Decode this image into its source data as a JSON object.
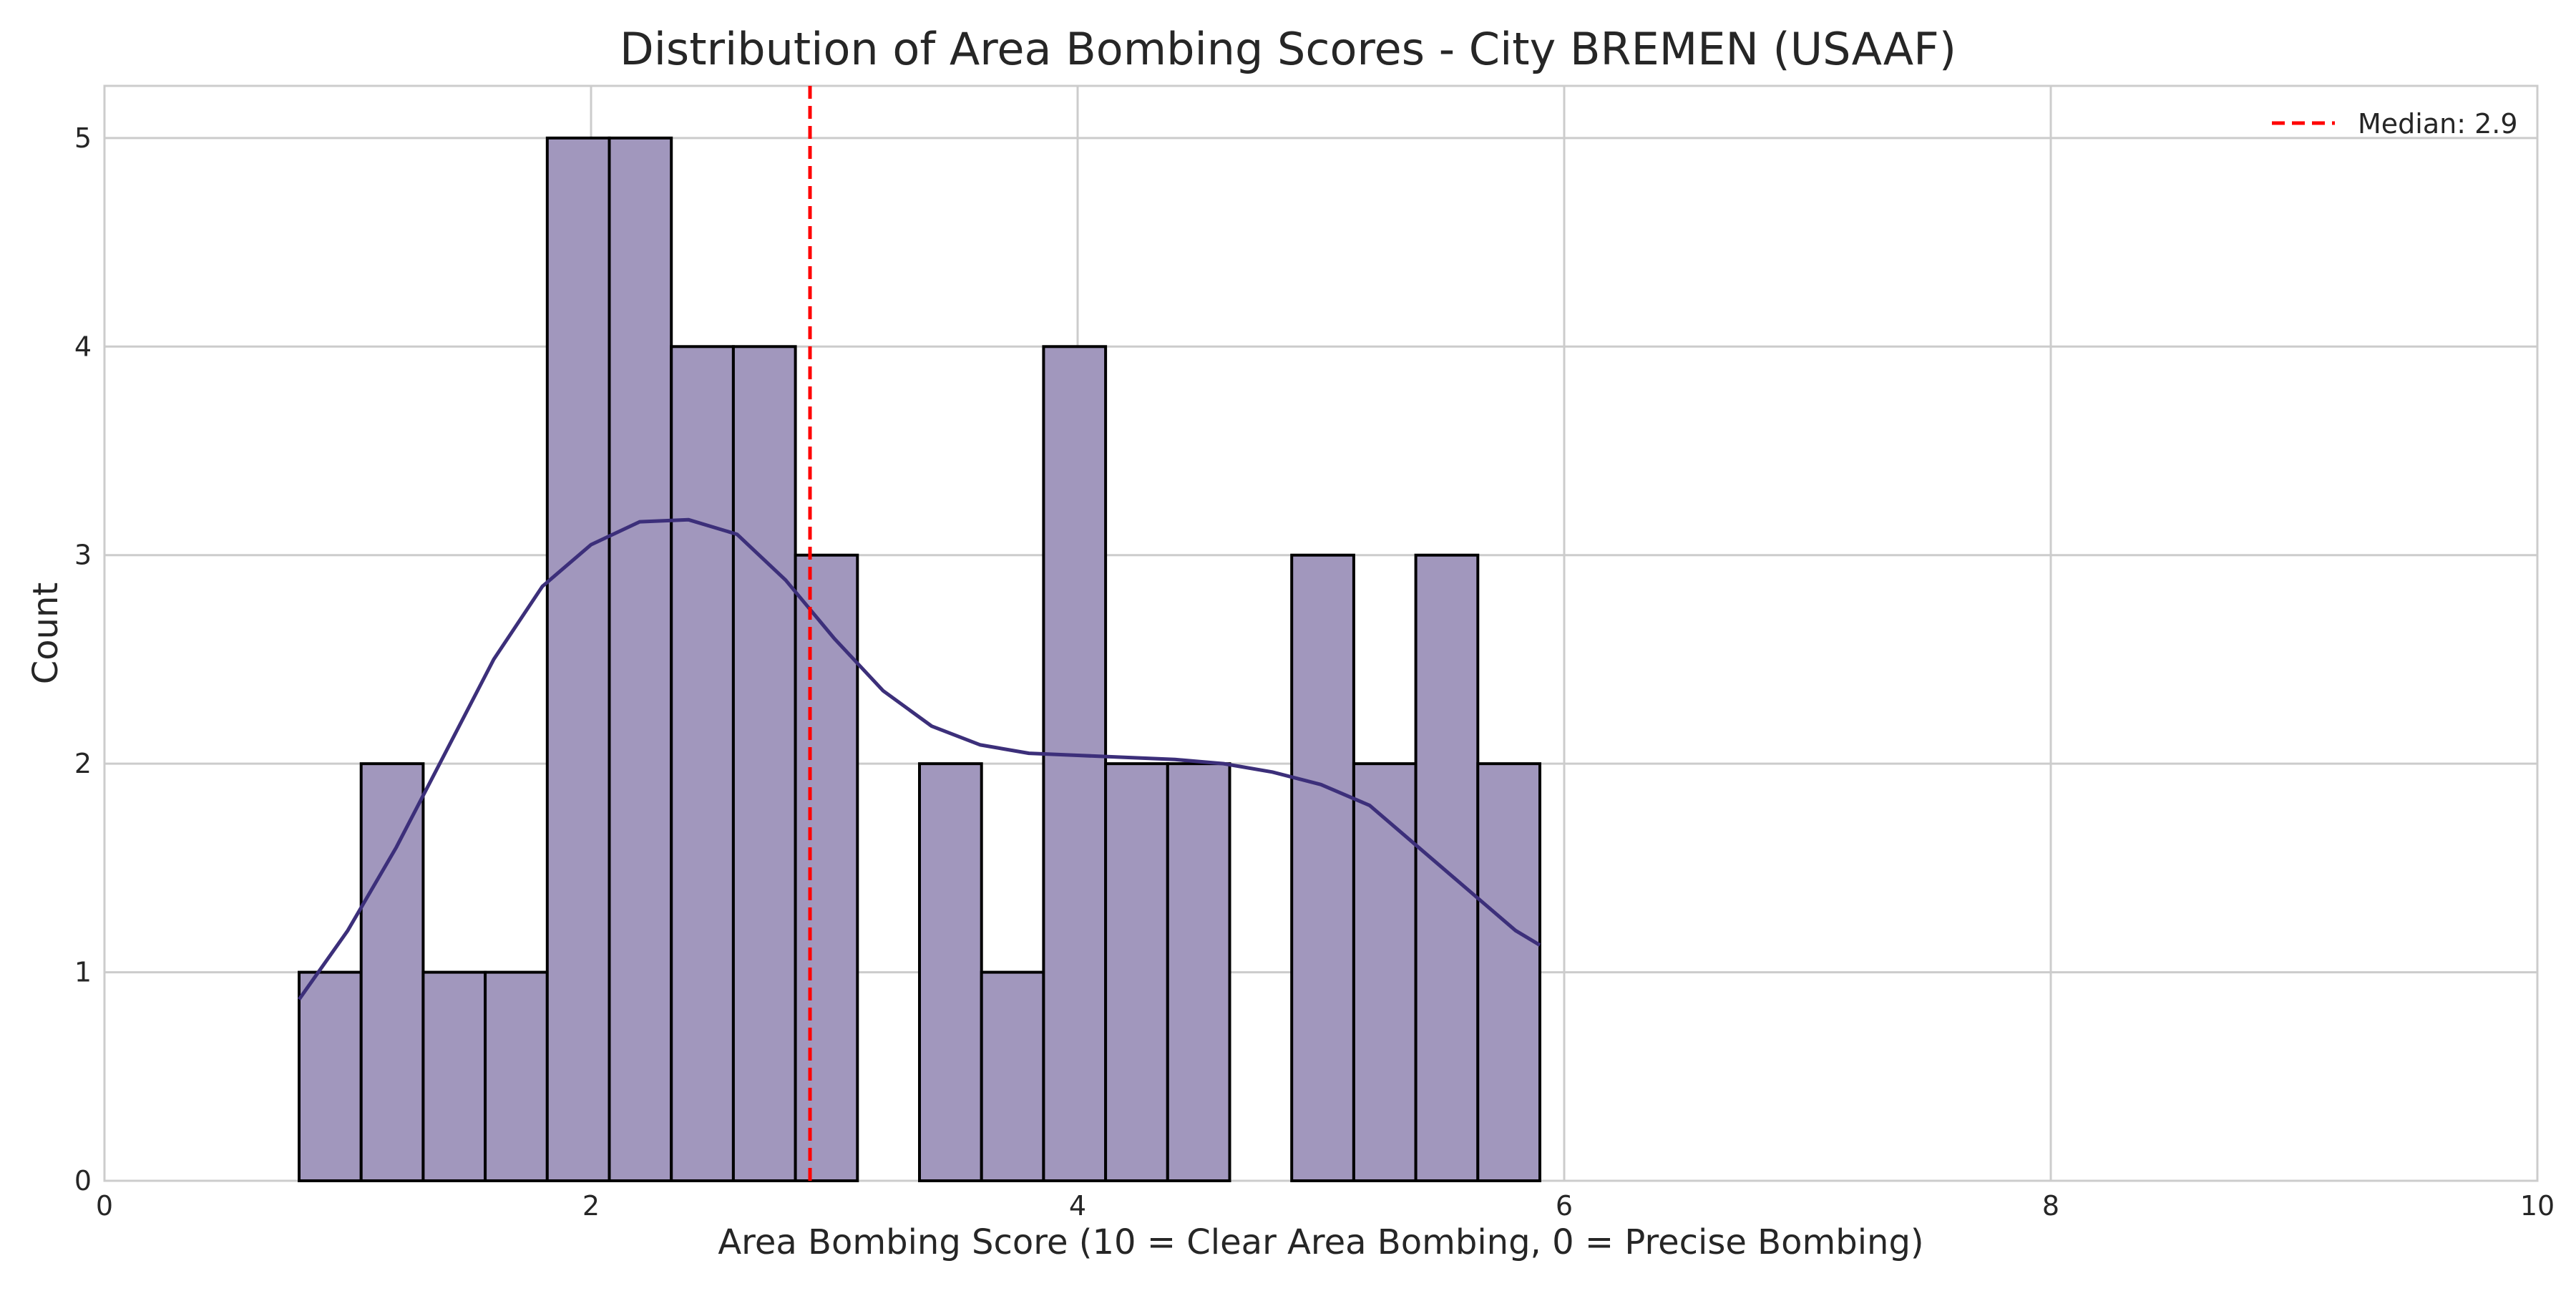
{
  "chart_data": {
    "type": "bar",
    "title": "Distribution of Area Bombing Scores - City BREMEN (USAAF)",
    "xlabel": "Area Bombing Score (10 = Clear Area Bombing, 0 = Precise Bombing)",
    "ylabel": "Count",
    "xlim": [
      0,
      10
    ],
    "ylim": [
      0,
      5.25
    ],
    "xticks": [
      0,
      2,
      4,
      6,
      8,
      10
    ],
    "yticks": [
      0,
      1,
      2,
      3,
      4,
      5
    ],
    "grid": true,
    "legend_placement": "top-right",
    "bar_color": "#a197bd",
    "bar_edge_color": "#000000",
    "kde_color": "#3c2f7a",
    "median_color": "#ff0000",
    "bins": [
      {
        "x0": 0.8,
        "x1": 1.055,
        "count": 1
      },
      {
        "x0": 1.055,
        "x1": 1.31,
        "count": 2
      },
      {
        "x0": 1.31,
        "x1": 1.565,
        "count": 1
      },
      {
        "x0": 1.565,
        "x1": 1.82,
        "count": 1
      },
      {
        "x0": 1.82,
        "x1": 2.075,
        "count": 5
      },
      {
        "x0": 2.075,
        "x1": 2.33,
        "count": 5
      },
      {
        "x0": 2.33,
        "x1": 2.585,
        "count": 4
      },
      {
        "x0": 2.585,
        "x1": 2.84,
        "count": 4
      },
      {
        "x0": 2.84,
        "x1": 3.095,
        "count": 3
      },
      {
        "x0": 3.095,
        "x1": 3.35,
        "count": 0
      },
      {
        "x0": 3.35,
        "x1": 3.605,
        "count": 2
      },
      {
        "x0": 3.605,
        "x1": 3.86,
        "count": 1
      },
      {
        "x0": 3.86,
        "x1": 4.115,
        "count": 4
      },
      {
        "x0": 4.115,
        "x1": 4.37,
        "count": 2
      },
      {
        "x0": 4.37,
        "x1": 4.625,
        "count": 2
      },
      {
        "x0": 4.625,
        "x1": 4.88,
        "count": 0
      },
      {
        "x0": 4.88,
        "x1": 5.135,
        "count": 3
      },
      {
        "x0": 5.135,
        "x1": 5.39,
        "count": 2
      },
      {
        "x0": 5.39,
        "x1": 5.645,
        "count": 3
      },
      {
        "x0": 5.645,
        "x1": 5.9,
        "count": 2
      }
    ],
    "kde": {
      "x": [
        0.8,
        1.0,
        1.2,
        1.4,
        1.6,
        1.8,
        2.0,
        2.2,
        2.4,
        2.6,
        2.8,
        3.0,
        3.2,
        3.4,
        3.6,
        3.8,
        4.0,
        4.2,
        4.4,
        4.6,
        4.8,
        5.0,
        5.2,
        5.4,
        5.6,
        5.8,
        5.9
      ],
      "y": [
        0.87,
        1.2,
        1.6,
        2.05,
        2.5,
        2.85,
        3.05,
        3.16,
        3.17,
        3.1,
        2.88,
        2.6,
        2.35,
        2.18,
        2.09,
        2.05,
        2.04,
        2.03,
        2.02,
        2.0,
        1.96,
        1.9,
        1.8,
        1.6,
        1.4,
        1.2,
        1.13
      ]
    },
    "median": {
      "value": 2.9,
      "label": "Median: 2.9"
    }
  }
}
